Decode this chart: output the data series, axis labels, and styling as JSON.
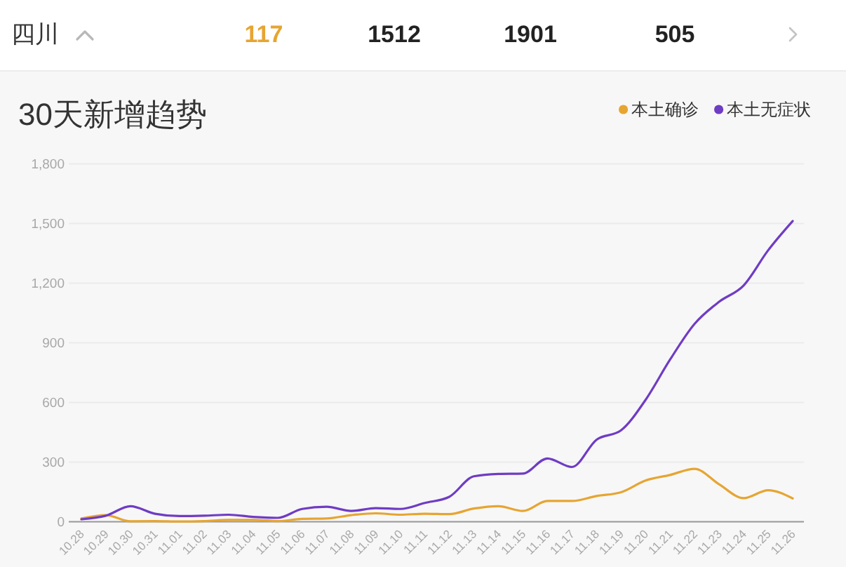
{
  "chart_data": {
    "type": "line",
    "title": "30天新增趋势",
    "categories": [
      "10.28",
      "10.29",
      "10.30",
      "10.31",
      "11.01",
      "11.02",
      "11.03",
      "11.04",
      "11.05",
      "11.06",
      "11.07",
      "11.08",
      "11.09",
      "11.10",
      "11.11",
      "11.12",
      "11.13",
      "11.14",
      "11.15",
      "11.16",
      "11.17",
      "11.18",
      "11.19",
      "11.20",
      "11.21",
      "11.22",
      "11.23",
      "11.24",
      "11.25",
      "11.26"
    ],
    "series": [
      {
        "name": "本土确诊",
        "color": "#e6a532",
        "values": [
          16,
          33,
          2,
          3,
          1,
          3,
          9,
          9,
          3,
          14,
          16,
          33,
          42,
          35,
          40,
          38,
          66,
          78,
          54,
          104,
          104,
          129,
          148,
          207,
          235,
          266,
          188,
          118,
          158,
          117
        ]
      },
      {
        "name": "本土无症状",
        "color": "#6f3cc4",
        "values": [
          12,
          30,
          78,
          40,
          28,
          30,
          35,
          24,
          19,
          64,
          75,
          54,
          68,
          64,
          94,
          125,
          228,
          240,
          242,
          318,
          275,
          412,
          459,
          612,
          815,
          995,
          1106,
          1188,
          1365,
          1512
        ]
      }
    ],
    "ylim": [
      0,
      1800
    ],
    "yticks": [
      0,
      300,
      600,
      900,
      {
        "value": 1200,
        "label": "1,200"
      },
      {
        "value": 1500,
        "label": "1,500"
      },
      {
        "value": 1800,
        "label": "1,800"
      }
    ],
    "grid": "y",
    "legend": "top right",
    "annotations": [
      "四川",
      "117",
      "1512",
      "1901",
      "505"
    ]
  }
}
